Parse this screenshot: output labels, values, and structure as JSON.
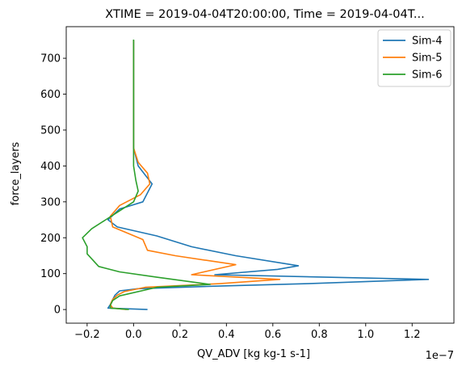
{
  "chart_data": {
    "type": "line",
    "title": "XTIME = 2019-04-04T20:00:00, Time = 2019-04-04T...",
    "xlabel": "QV_ADV [kg kg-1 s-1]",
    "ylabel": "force_layers",
    "x_offset_label": "1e−7",
    "x_scale_exponent": -7,
    "xlim": [
      -0.29,
      1.38
    ],
    "ylim": [
      -38,
      788
    ],
    "xticks": [
      -0.2,
      0.0,
      0.2,
      0.4,
      0.6,
      0.8,
      1.0,
      1.2
    ],
    "xtick_labels": [
      "−0.2",
      "0.0",
      "0.2",
      "0.4",
      "0.6",
      "0.8",
      "1.0",
      "1.2"
    ],
    "yticks": [
      0,
      100,
      200,
      300,
      400,
      500,
      600,
      700
    ],
    "ytick_labels": [
      "0",
      "100",
      "200",
      "300",
      "400",
      "500",
      "600",
      "700"
    ],
    "grid": false,
    "legend": "top-right",
    "series": [
      {
        "name": "Sim-4",
        "color": "#1f77b4",
        "points": [
          [
            0.06,
            0
          ],
          [
            -0.11,
            4
          ],
          [
            -0.1,
            14
          ],
          [
            -0.09,
            28
          ],
          [
            -0.08,
            40
          ],
          [
            -0.06,
            52
          ],
          [
            0.02,
            58
          ],
          [
            0.35,
            65
          ],
          [
            0.75,
            72
          ],
          [
            1.27,
            84
          ],
          [
            0.35,
            97
          ],
          [
            0.62,
            112
          ],
          [
            0.71,
            122
          ],
          [
            0.44,
            150
          ],
          [
            0.25,
            175
          ],
          [
            0.1,
            205
          ],
          [
            -0.07,
            230
          ],
          [
            -0.11,
            250
          ],
          [
            -0.06,
            280
          ],
          [
            0.04,
            300
          ],
          [
            0.08,
            350
          ],
          [
            0.02,
            400
          ],
          [
            0.0,
            450
          ],
          [
            0.0,
            500
          ],
          [
            0.0,
            550
          ],
          [
            0.0,
            600
          ],
          [
            0.0,
            650
          ],
          [
            0.0,
            700
          ],
          [
            0.0,
            750
          ]
        ]
      },
      {
        "name": "Sim-5",
        "color": "#ff7f0e",
        "points": [
          [
            -0.03,
            0
          ],
          [
            -0.09,
            4
          ],
          [
            -0.1,
            14
          ],
          [
            -0.09,
            28
          ],
          [
            -0.07,
            40
          ],
          [
            -0.04,
            50
          ],
          [
            0.05,
            62
          ],
          [
            0.37,
            72
          ],
          [
            0.63,
            84
          ],
          [
            0.25,
            97
          ],
          [
            0.44,
            125
          ],
          [
            0.18,
            150
          ],
          [
            0.06,
            165
          ],
          [
            0.04,
            195
          ],
          [
            -0.09,
            230
          ],
          [
            -0.1,
            260
          ],
          [
            -0.06,
            290
          ],
          [
            0.03,
            320
          ],
          [
            0.07,
            350
          ],
          [
            0.06,
            380
          ],
          [
            0.02,
            410
          ],
          [
            0.0,
            450
          ],
          [
            0.0,
            500
          ],
          [
            0.0,
            550
          ],
          [
            0.0,
            600
          ],
          [
            0.0,
            650
          ],
          [
            0.0,
            700
          ],
          [
            0.0,
            750
          ]
        ]
      },
      {
        "name": "Sim-6",
        "color": "#2ca02c",
        "points": [
          [
            -0.02,
            0
          ],
          [
            -0.1,
            4
          ],
          [
            -0.1,
            12
          ],
          [
            -0.09,
            25
          ],
          [
            -0.06,
            38
          ],
          [
            0.1,
            62
          ],
          [
            0.33,
            70
          ],
          [
            0.1,
            90
          ],
          [
            -0.06,
            105
          ],
          [
            -0.15,
            120
          ],
          [
            -0.2,
            155
          ],
          [
            -0.2,
            175
          ],
          [
            -0.22,
            200
          ],
          [
            -0.18,
            225
          ],
          [
            -0.12,
            250
          ],
          [
            -0.06,
            275
          ],
          [
            0.0,
            300
          ],
          [
            0.02,
            330
          ],
          [
            0.01,
            360
          ],
          [
            0.0,
            400
          ],
          [
            0.0,
            450
          ],
          [
            0.0,
            500
          ],
          [
            0.0,
            550
          ],
          [
            0.0,
            600
          ],
          [
            0.0,
            650
          ],
          [
            0.0,
            700
          ],
          [
            0.0,
            752
          ]
        ]
      }
    ]
  }
}
